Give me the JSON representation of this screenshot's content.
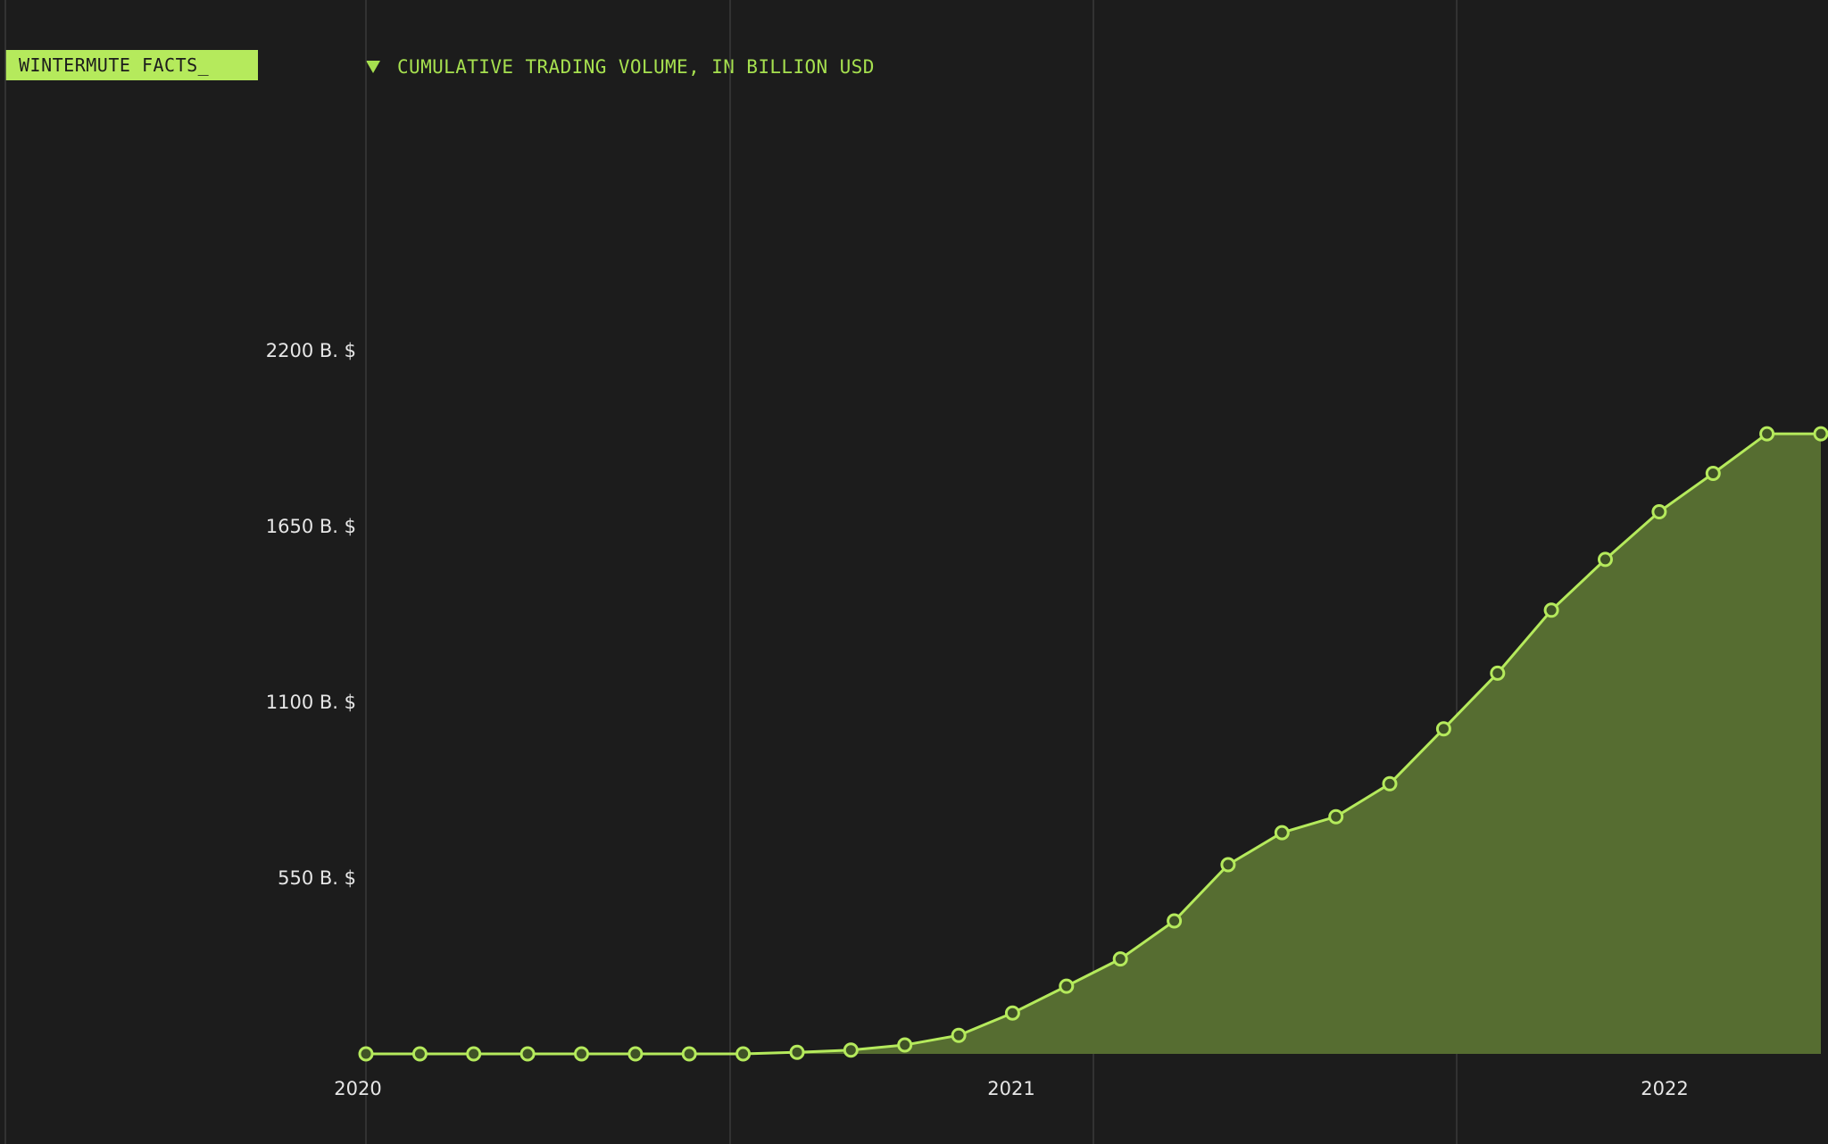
{
  "brand": {
    "label": "WINTERMUTE FACTS_"
  },
  "legend": {
    "label": "CUMULATIVE TRADING VOLUME, IN BILLION USD",
    "marker_icon": "triangle-down-icon"
  },
  "colors": {
    "background": "#1c1c1c",
    "accent": "#b5ea5c",
    "line": "#b5ea5c",
    "area_fill": "#566d31",
    "gridline": "#3a3a3a",
    "tick_text": "#e6e6e6"
  },
  "chart_data": {
    "type": "area",
    "title": "",
    "xlabel": "",
    "ylabel": "",
    "x_tick_labels": [
      "2020",
      "2021",
      "2022"
    ],
    "y_tick_labels": [
      "550 B. $",
      "1100 B. $",
      "1650 B. $",
      "2200 B. $"
    ],
    "y_tick_values": [
      550,
      1100,
      1650,
      2200
    ],
    "ylim": [
      0,
      2200
    ],
    "grid": "vertical",
    "series": [
      {
        "name": "CUMULATIVE TRADING VOLUME, IN BILLION USD",
        "x": [
          "2020-01",
          "2020-02",
          "2020-03",
          "2020-04",
          "2020-05",
          "2020-06",
          "2020-07",
          "2020-08",
          "2020-09",
          "2020-10",
          "2020-11",
          "2020-12",
          "2021-01",
          "2021-02",
          "2021-03",
          "2021-04",
          "2021-05",
          "2021-06",
          "2021-07",
          "2021-08",
          "2021-09",
          "2021-10",
          "2021-11",
          "2021-12",
          "2022-01",
          "2022-02",
          "2022-03",
          "2022-04"
        ],
        "values": [
          0,
          0,
          0,
          0,
          0,
          0,
          0,
          0,
          5,
          12,
          28,
          58,
          128,
          212,
          297,
          416,
          592,
          692,
          742,
          845,
          1017,
          1191,
          1388,
          1547,
          1696,
          1816,
          1940,
          1940
        ]
      }
    ]
  }
}
